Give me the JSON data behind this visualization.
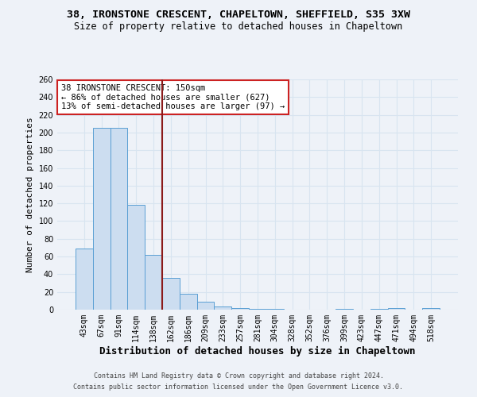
{
  "title": "38, IRONSTONE CRESCENT, CHAPELTOWN, SHEFFIELD, S35 3XW",
  "subtitle": "Size of property relative to detached houses in Chapeltown",
  "xlabel": "Distribution of detached houses by size in Chapeltown",
  "ylabel": "Number of detached properties",
  "bin_labels": [
    "43sqm",
    "67sqm",
    "91sqm",
    "114sqm",
    "138sqm",
    "162sqm",
    "186sqm",
    "209sqm",
    "233sqm",
    "257sqm",
    "281sqm",
    "304sqm",
    "328sqm",
    "352sqm",
    "376sqm",
    "399sqm",
    "423sqm",
    "447sqm",
    "471sqm",
    "494sqm",
    "518sqm"
  ],
  "bar_heights": [
    69,
    205,
    205,
    118,
    62,
    36,
    18,
    9,
    4,
    2,
    1,
    1,
    0,
    0,
    0,
    1,
    0,
    1,
    2,
    0,
    2
  ],
  "bar_color": "#ccddf0",
  "bar_edge_color": "#5a9fd4",
  "bar_width": 1.0,
  "property_label": "38 IRONSTONE CRESCENT: 150sqm",
  "annotation_line1": "← 86% of detached houses are smaller (627)",
  "annotation_line2": "13% of semi-detached houses are larger (97) →",
  "vline_color": "#8b1a1a",
  "vline_x": 4.5,
  "ylim": [
    0,
    260
  ],
  "yticks": [
    0,
    20,
    40,
    60,
    80,
    100,
    120,
    140,
    160,
    180,
    200,
    220,
    240,
    260
  ],
  "background_color": "#eef2f8",
  "grid_color": "#d8e4f0",
  "footer_line1": "Contains HM Land Registry data © Crown copyright and database right 2024.",
  "footer_line2": "Contains public sector information licensed under the Open Government Licence v3.0.",
  "title_fontsize": 9.5,
  "subtitle_fontsize": 8.5,
  "xlabel_fontsize": 9,
  "ylabel_fontsize": 8,
  "tick_fontsize": 7,
  "annotation_fontsize": 7.5,
  "footer_fontsize": 6
}
